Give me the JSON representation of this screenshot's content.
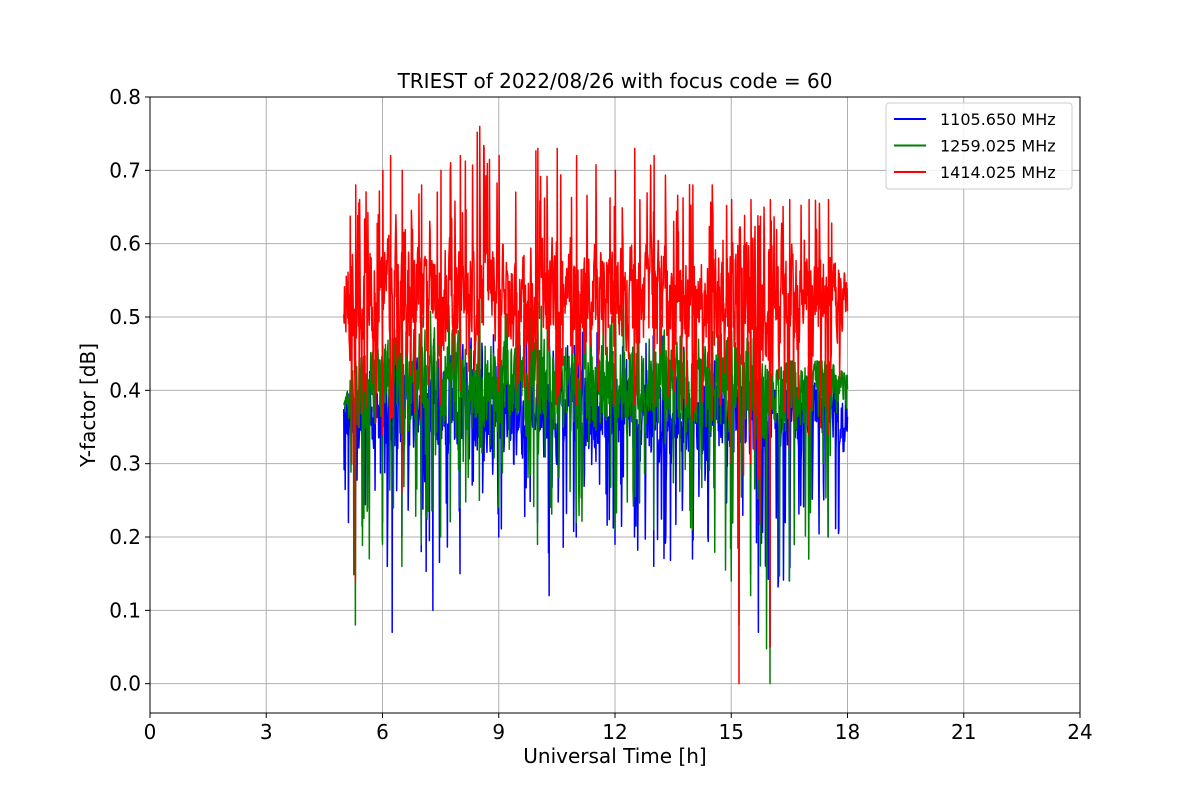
{
  "chart_data": {
    "type": "line",
    "title": "TRIEST of 2022/08/26 with focus code = 60",
    "xlabel": "Universal Time [h]",
    "ylabel": "Y-factor [dB]",
    "xlim": [
      0,
      24
    ],
    "ylim": [
      -0.04,
      0.8
    ],
    "xticks": [
      0,
      3,
      6,
      9,
      12,
      15,
      18,
      21,
      24
    ],
    "xtick_labels": [
      "0",
      "3",
      "6",
      "9",
      "12",
      "15",
      "18",
      "21",
      "24"
    ],
    "yticks": [
      0.0,
      0.1,
      0.2,
      0.3,
      0.4,
      0.5,
      0.6,
      0.7,
      0.8
    ],
    "ytick_labels": [
      "0.0",
      "0.1",
      "0.2",
      "0.3",
      "0.4",
      "0.5",
      "0.6",
      "0.7",
      "0.8"
    ],
    "grid": true,
    "legend_position": "top-right",
    "time_range": [
      5.0,
      18.0
    ],
    "series": [
      {
        "name": "1105.650 MHz",
        "color": "#0000ff",
        "envelope_time": [
          5.0,
          5.3,
          6.0,
          6.25,
          6.5,
          7.0,
          7.3,
          8.0,
          9.0,
          10.0,
          10.3,
          11.0,
          12.0,
          13.0,
          14.0,
          15.0,
          15.2,
          15.5,
          15.7,
          16.0,
          16.5,
          17.0,
          17.5,
          18.0
        ],
        "envelope_min": [
          0.22,
          0.2,
          0.22,
          0.07,
          0.2,
          0.18,
          0.1,
          0.15,
          0.2,
          0.22,
          0.12,
          0.2,
          0.19,
          0.16,
          0.17,
          0.15,
          0.1,
          0.15,
          0.07,
          0.05,
          0.14,
          0.17,
          0.2,
          0.18
        ],
        "envelope_max": [
          0.42,
          0.44,
          0.44,
          0.42,
          0.54,
          0.46,
          0.46,
          0.48,
          0.48,
          0.48,
          0.46,
          0.5,
          0.48,
          0.48,
          0.46,
          0.45,
          0.4,
          0.42,
          0.42,
          0.4,
          0.4,
          0.42,
          0.42,
          0.44
        ],
        "typical": 0.37
      },
      {
        "name": "1259.025 MHz",
        "color": "#008000",
        "envelope_time": [
          5.0,
          5.3,
          6.0,
          6.5,
          7.0,
          7.5,
          8.0,
          8.5,
          9.0,
          10.0,
          11.0,
          12.0,
          13.0,
          14.0,
          15.0,
          15.2,
          15.5,
          16.0,
          16.5,
          17.0,
          17.5,
          18.0
        ],
        "envelope_min": [
          0.22,
          0.08,
          0.19,
          0.16,
          0.19,
          0.2,
          0.24,
          0.25,
          0.24,
          0.19,
          0.22,
          0.21,
          0.21,
          0.21,
          0.14,
          0.08,
          0.12,
          0.0,
          0.14,
          0.17,
          0.2,
          0.23
        ],
        "envelope_max": [
          0.38,
          0.44,
          0.46,
          0.5,
          0.5,
          0.52,
          0.54,
          0.56,
          0.53,
          0.52,
          0.5,
          0.52,
          0.52,
          0.52,
          0.48,
          0.45,
          0.48,
          0.42,
          0.44,
          0.44,
          0.44,
          0.42
        ],
        "typical": 0.41
      },
      {
        "name": "1414.025 MHz",
        "color": "#ff0000",
        "envelope_time": [
          5.0,
          5.3,
          5.4,
          6.0,
          6.2,
          6.5,
          7.0,
          7.5,
          8.0,
          8.5,
          9.0,
          10.0,
          10.5,
          11.0,
          12.0,
          12.5,
          13.0,
          14.0,
          14.5,
          15.0,
          15.2,
          15.5,
          16.0,
          16.5,
          17.0,
          17.5,
          18.0
        ],
        "envelope_min": [
          0.4,
          0.14,
          0.35,
          0.34,
          0.36,
          0.26,
          0.36,
          0.38,
          0.4,
          0.42,
          0.4,
          0.38,
          0.38,
          0.38,
          0.38,
          0.38,
          0.38,
          0.36,
          0.36,
          0.3,
          0.0,
          0.3,
          0.05,
          0.32,
          0.34,
          0.34,
          0.36
        ],
        "envelope_max": [
          0.64,
          0.68,
          0.66,
          0.7,
          0.72,
          0.7,
          0.68,
          0.7,
          0.72,
          0.76,
          0.72,
          0.73,
          0.73,
          0.72,
          0.7,
          0.73,
          0.72,
          0.68,
          0.68,
          0.66,
          0.62,
          0.66,
          0.66,
          0.66,
          0.66,
          0.66,
          0.54
        ],
        "typical": 0.53
      }
    ]
  }
}
